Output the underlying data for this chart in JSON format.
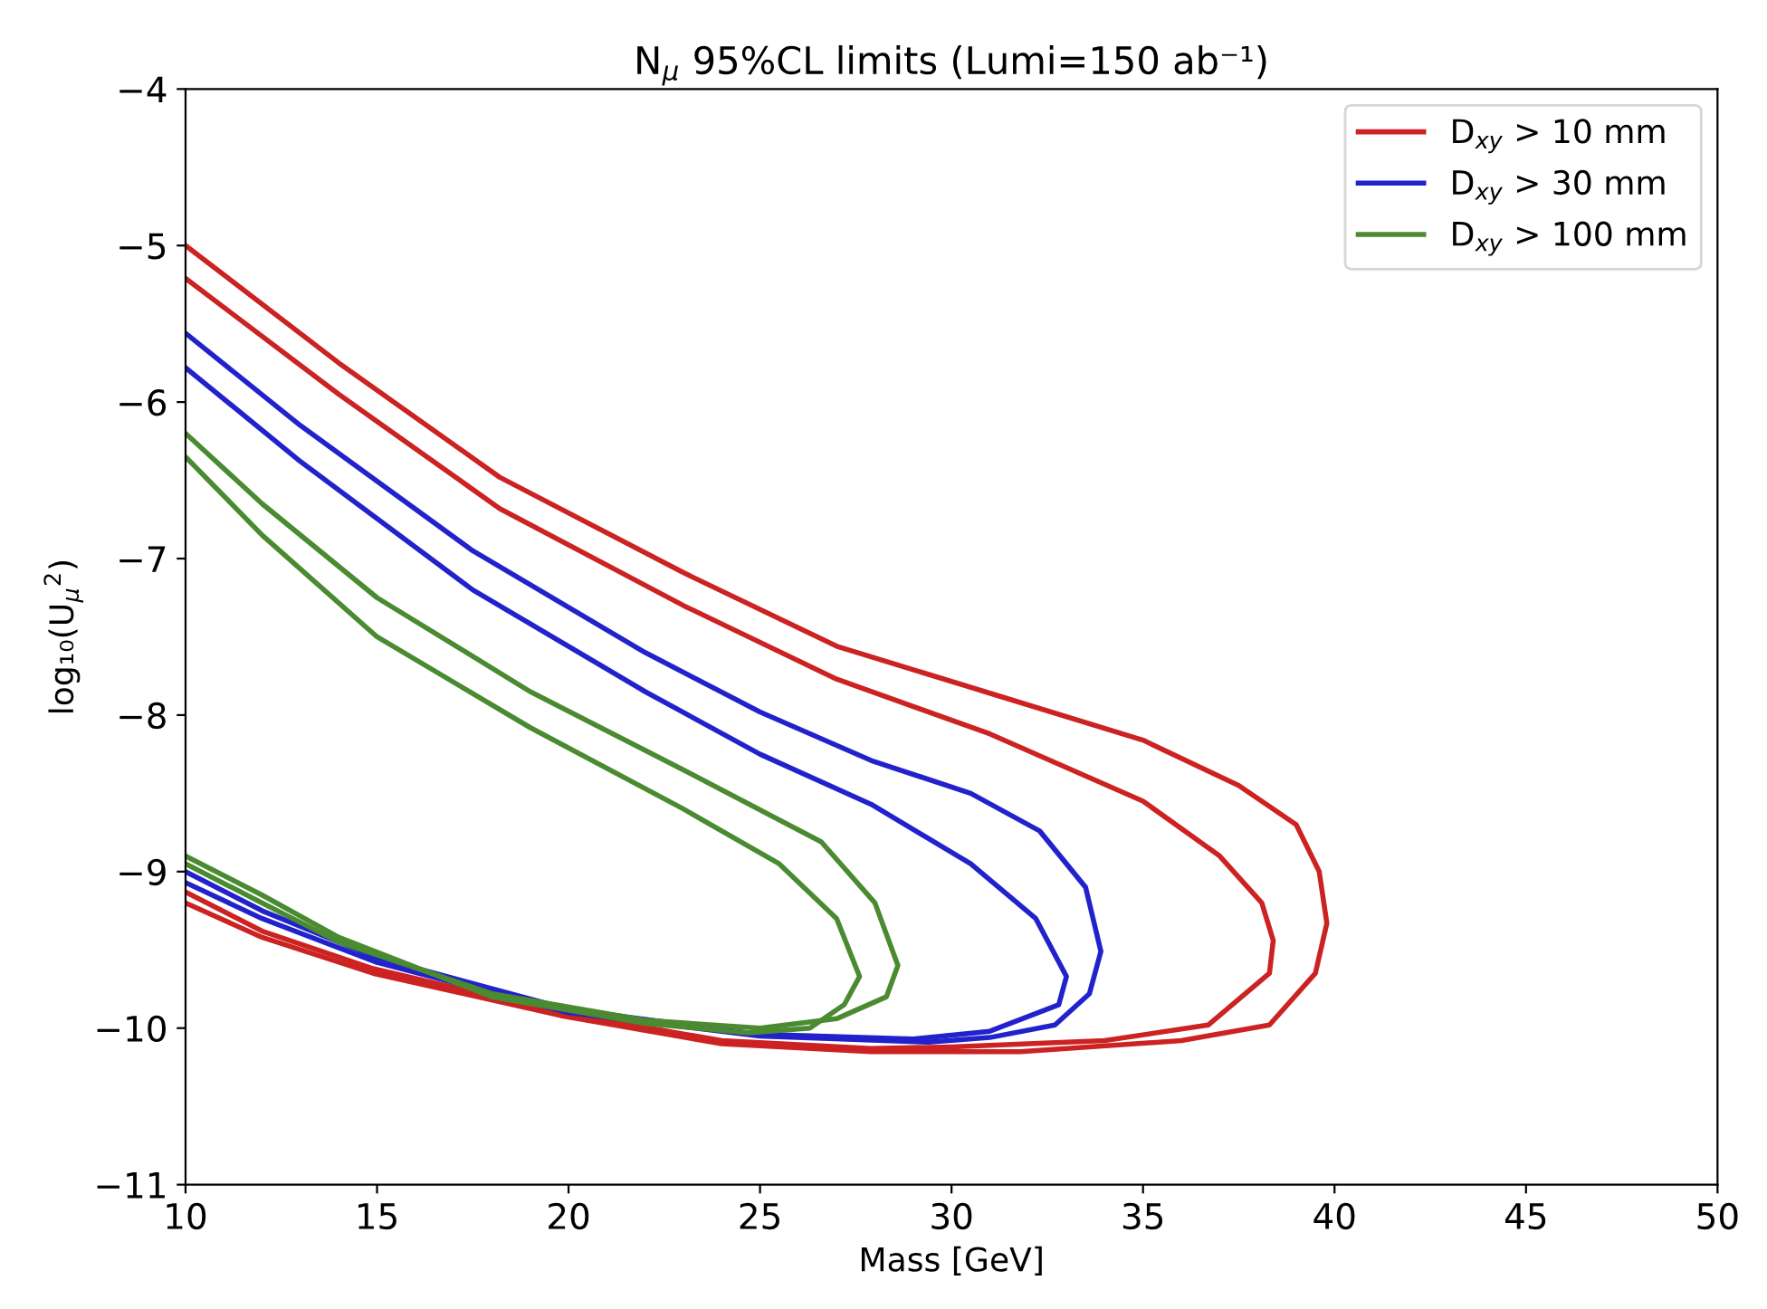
{
  "chart_data": {
    "type": "line",
    "title": "N$_{μ}$ 95%CL limits (Lumi=150 ab⁻¹)",
    "xlabel": "Mass [GeV]",
    "ylabel": "log₁₀(U$_{μ}$$^{2}$)",
    "xlim": [
      10,
      50
    ],
    "xticks": [
      10,
      15,
      20,
      25,
      30,
      35,
      40,
      45,
      50
    ],
    "ylim": [
      -11,
      -4
    ],
    "yticks": [
      -11,
      -10,
      -9,
      -8,
      -7,
      -6,
      -5,
      -4
    ],
    "grid": false,
    "legend": "top right",
    "marker": "none",
    "line_style": "solid",
    "series": [
      {
        "name": "D$_{xy}$ > 10 mm",
        "color": "#cc2222",
        "x": [
          10,
          14,
          18.2,
          23,
          27,
          31,
          35,
          37.5,
          39,
          39.6,
          39.8,
          39.5,
          38.3,
          36,
          31.8,
          27.9,
          24,
          19.8,
          14.9,
          12,
          10
        ],
        "values": [
          -5.0,
          -5.75,
          -6.48,
          -7.09,
          -7.56,
          -7.86,
          -8.16,
          -8.45,
          -8.7,
          -9.0,
          -9.33,
          -9.65,
          -9.98,
          -10.08,
          -10.15,
          -10.15,
          -10.1,
          -9.92,
          -9.65,
          -9.42,
          -9.2
        ]
      },
      {
        "color": "#cc2222",
        "x": [
          10,
          14,
          18.2,
          23,
          27,
          31,
          35,
          37,
          38.1,
          38.4,
          38.3,
          36.7,
          34,
          30,
          27.9,
          24,
          19.8,
          14.9,
          12,
          10
        ],
        "values": [
          -5.21,
          -5.95,
          -6.68,
          -7.3,
          -7.77,
          -8.12,
          -8.55,
          -8.9,
          -9.2,
          -9.44,
          -9.65,
          -9.98,
          -10.08,
          -10.12,
          -10.13,
          -10.08,
          -9.9,
          -9.62,
          -9.38,
          -9.13
        ]
      },
      {
        "name": "D$_{xy}$ > 30 mm",
        "color": "#2222cc",
        "x": [
          10,
          13,
          17.5,
          22,
          25,
          27.9,
          30.5,
          32.3,
          33.5,
          33.9,
          33.6,
          32.7,
          31,
          29.4,
          25,
          20,
          15,
          12,
          10
        ],
        "values": [
          -5.56,
          -6.15,
          -6.95,
          -7.6,
          -7.98,
          -8.29,
          -8.5,
          -8.74,
          -9.1,
          -9.51,
          -9.78,
          -9.98,
          -10.06,
          -10.09,
          -10.05,
          -9.9,
          -9.58,
          -9.3,
          -9.07
        ]
      },
      {
        "color": "#2222cc",
        "x": [
          10,
          13,
          17.5,
          22,
          25,
          27.9,
          30.5,
          32.2,
          33.0,
          32.8,
          31,
          29,
          25,
          20,
          15,
          12,
          10
        ],
        "values": [
          -5.78,
          -6.38,
          -7.2,
          -7.85,
          -8.25,
          -8.57,
          -8.95,
          -9.3,
          -9.67,
          -9.85,
          -10.02,
          -10.07,
          -10.04,
          -9.88,
          -9.55,
          -9.25,
          -9.0
        ]
      },
      {
        "name": "D$_{xy}$ > 100 mm",
        "color": "#4a8a30",
        "x": [
          10,
          12,
          15,
          19,
          23,
          26.6,
          28.0,
          28.6,
          28.3,
          27.0,
          25,
          22,
          18,
          14,
          12,
          10
        ],
        "values": [
          -6.2,
          -6.65,
          -7.25,
          -7.85,
          -8.35,
          -8.81,
          -9.2,
          -9.6,
          -9.8,
          -9.94,
          -10.0,
          -9.95,
          -9.78,
          -9.45,
          -9.2,
          -8.95
        ]
      },
      {
        "color": "#4a8a30",
        "x": [
          10,
          12,
          15,
          19,
          23,
          25.5,
          27.0,
          27.6,
          27.2,
          26.3,
          24.7,
          22,
          18,
          14,
          12,
          10
        ],
        "values": [
          -6.35,
          -6.85,
          -7.5,
          -8.08,
          -8.6,
          -8.95,
          -9.3,
          -9.67,
          -9.85,
          -10.0,
          -10.03,
          -9.97,
          -9.8,
          -9.42,
          -9.15,
          -8.9
        ]
      }
    ]
  }
}
